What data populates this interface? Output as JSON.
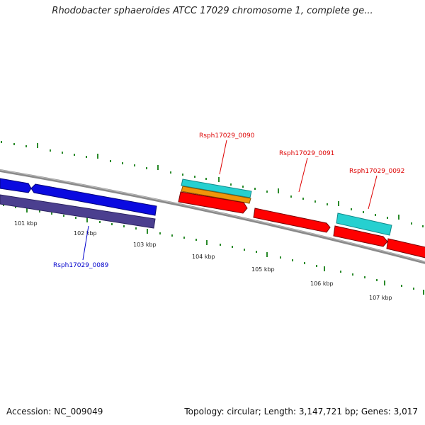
{
  "title": "Rhodobacter sphaeroides ATCC 17029 chromosome 1, complete ge...",
  "footer": {
    "accession": "Accession: NC_009049",
    "summary": "Topology: circular; Length: 3,147,721 bp; Genes: 3,017"
  },
  "ticks": [
    "101 kbp",
    "102 kbp",
    "103 kbp",
    "104 kbp",
    "105 kbp",
    "106 kbp",
    "107 kbp"
  ],
  "genes": {
    "g0089": {
      "label": "Rsph17029_0089",
      "color": "#0000cc"
    },
    "g0090": {
      "label": "Rsph17029_0090",
      "color": "#dd0000"
    },
    "g0091": {
      "label": "Rsph17029_0091",
      "color": "#dd0000"
    },
    "g0092": {
      "label": "Rsph17029_0092",
      "color": "#dd0000"
    }
  },
  "colors": {
    "cds_forward": "#ff0000",
    "cds_reverse": "#0000ee",
    "gene_track": "#4a3f8c",
    "rrna_cyan": "#26d0d0",
    "orange_feature": "#f0960a",
    "backbone": "#888888",
    "tick_marks": "#2a8a2a"
  }
}
